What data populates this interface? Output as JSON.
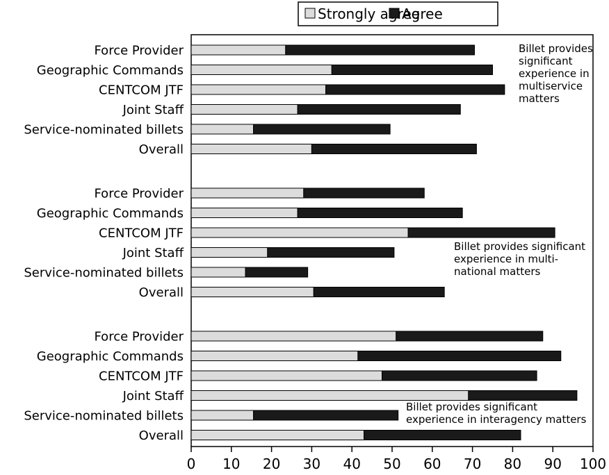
{
  "chart_data": {
    "type": "bar",
    "orientation": "horizontal",
    "stacked": true,
    "xlim": [
      0,
      100
    ],
    "xticks": [
      0,
      10,
      20,
      30,
      40,
      50,
      60,
      70,
      80,
      90,
      100
    ],
    "grid": false,
    "legend": {
      "position": "top",
      "entries": [
        {
          "label": "Strongly agree",
          "color": "#dcdcdc"
        },
        {
          "label": "Agree",
          "color": "#1a1a1a"
        }
      ]
    },
    "groups": [
      {
        "annotation": [
          "Billet provides",
          "significant",
          "experience in",
          "multiservice",
          "matters"
        ],
        "bars": [
          {
            "label": "Force Provider",
            "strongly_agree": 23.5,
            "agree": 47
          },
          {
            "label": "Geographic Commands",
            "strongly_agree": 35,
            "agree": 40
          },
          {
            "label": "CENTCOM JTF",
            "strongly_agree": 33.5,
            "agree": 44.5
          },
          {
            "label": "Joint Staff",
            "strongly_agree": 26.5,
            "agree": 40.5
          },
          {
            "label": "Service-nominated billets",
            "strongly_agree": 15.5,
            "agree": 34
          },
          {
            "label": "Overall",
            "strongly_agree": 30,
            "agree": 41
          }
        ]
      },
      {
        "annotation": [
          "Billet provides significant",
          "experience in multi-",
          "national matters"
        ],
        "bars": [
          {
            "label": "Force Provider",
            "strongly_agree": 28,
            "agree": 30
          },
          {
            "label": "Geographic Commands",
            "strongly_agree": 26.5,
            "agree": 41
          },
          {
            "label": "CENTCOM JTF",
            "strongly_agree": 54,
            "agree": 36.5
          },
          {
            "label": "Joint Staff",
            "strongly_agree": 19,
            "agree": 31.5
          },
          {
            "label": "Service-nominated billets",
            "strongly_agree": 13.5,
            "agree": 15.5
          },
          {
            "label": "Overall",
            "strongly_agree": 30.5,
            "agree": 32.5
          }
        ]
      },
      {
        "annotation": [
          "Billet provides significant",
          "experience in interagency matters"
        ],
        "bars": [
          {
            "label": "Force Provider",
            "strongly_agree": 51,
            "agree": 36.5
          },
          {
            "label": "Geographic Commands",
            "strongly_agree": 41.5,
            "agree": 50.5
          },
          {
            "label": "CENTCOM JTF",
            "strongly_agree": 47.5,
            "agree": 38.5
          },
          {
            "label": "Joint Staff",
            "strongly_agree": 69,
            "agree": 27
          },
          {
            "label": "Service-nominated billets",
            "strongly_agree": 15.5,
            "agree": 36
          },
          {
            "label": "Overall",
            "strongly_agree": 43,
            "agree": 39
          }
        ]
      }
    ]
  }
}
